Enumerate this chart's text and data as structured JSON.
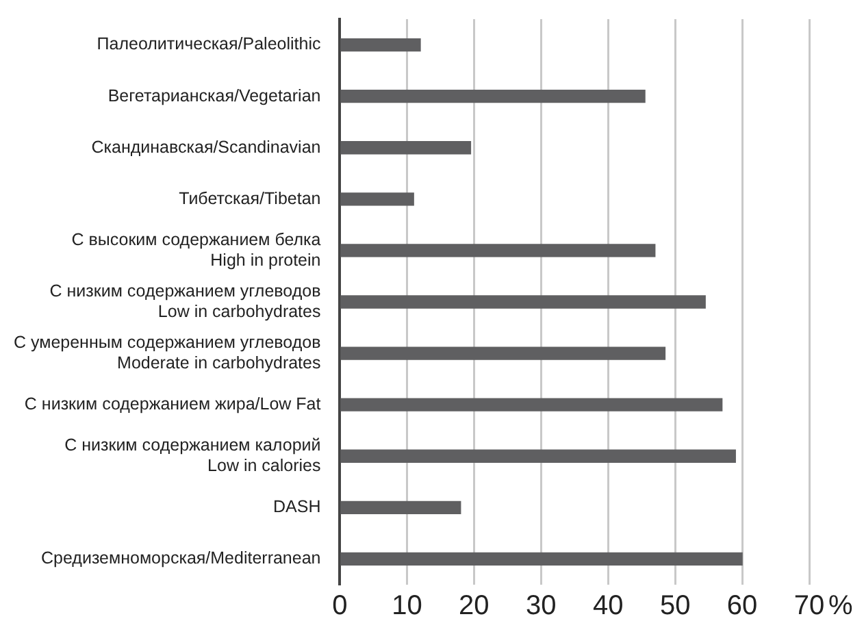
{
  "chart_data": {
    "type": "bar",
    "orientation": "horizontal",
    "xlabel": "%",
    "categories": [
      "Палеолитическая/Paleolithic",
      "Вегетарианская/Vegetarian",
      "Скандинавская/Scandinavian",
      "Тибетская/Tibetan",
      "С высоким содержанием белка\nHigh in protein",
      "С низким содержанием углеводов\nLow in carbohydrates",
      "С умеренным содержанием углеводов\nModerate in carbohydrates",
      "С низким содержанием жира/Low Fat",
      "С низким содержанием калорий\nLow in calories",
      "DASH",
      "Средиземноморская/Mediterranean"
    ],
    "values": [
      12,
      45.5,
      19.5,
      11,
      47,
      54.5,
      48.5,
      57,
      59,
      18,
      60
    ],
    "color": "#5f5f61",
    "xlim": [
      0,
      70
    ],
    "xticks": [
      0,
      10,
      20,
      30,
      40,
      50,
      60,
      70
    ],
    "grid": "x"
  }
}
